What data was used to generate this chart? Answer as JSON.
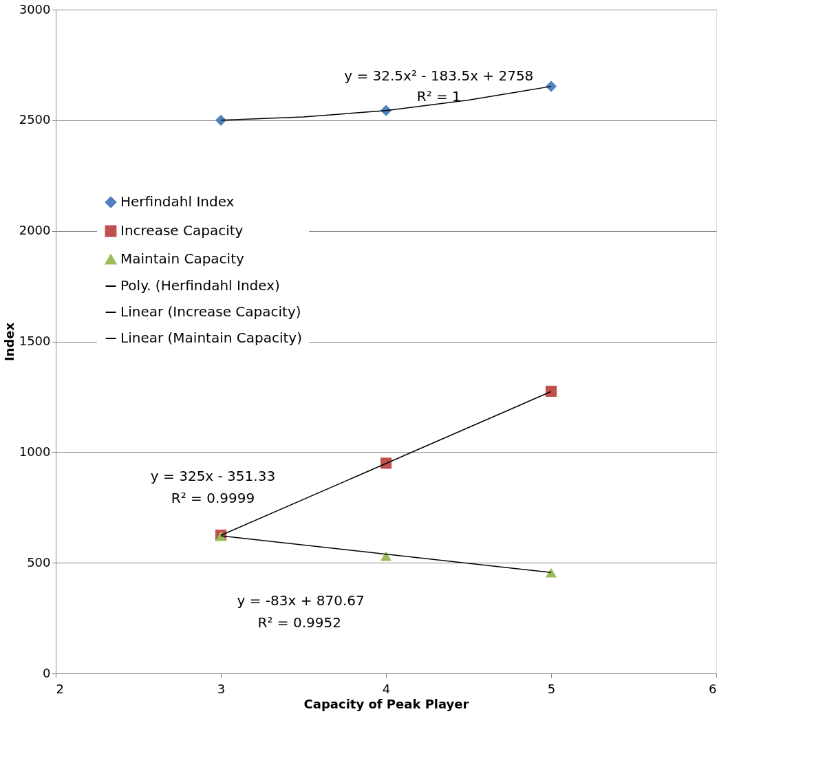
{
  "chart_data": {
    "type": "scatter",
    "xlabel": "Capacity of Peak Player",
    "ylabel": "Index",
    "xlim": [
      2,
      6
    ],
    "xticks": [
      2,
      3,
      4,
      5,
      6
    ],
    "ylim": [
      0,
      3000
    ],
    "yticks": [
      0,
      500,
      1000,
      1500,
      2000,
      2500,
      3000
    ],
    "grid": "y",
    "legend": "left",
    "series": [
      {
        "name": "Herfindahl Index",
        "marker": "diamond",
        "color": "#4f81bd",
        "x": [
          3,
          4,
          5
        ],
        "values": [
          2500,
          2544,
          2653
        ]
      },
      {
        "name": "Increase Capacity",
        "marker": "square",
        "color": "#c0504d",
        "x": [
          3,
          4,
          5
        ],
        "values": [
          625,
          950,
          1275
        ]
      },
      {
        "name": "Maintain Capacity",
        "marker": "triangle",
        "color": "#9bbb59",
        "x": [
          3,
          4,
          5
        ],
        "values": [
          620,
          530,
          455
        ]
      },
      {
        "name": "Poly. (Herfindahl Index)",
        "type": "line",
        "color": "#000000",
        "x": [
          3,
          3.5,
          4,
          4.5,
          5
        ],
        "values": [
          2500,
          2515,
          2544,
          2591,
          2653
        ]
      },
      {
        "name": "Linear (Increase Capacity)",
        "type": "line",
        "color": "#000000",
        "x": [
          3,
          5
        ],
        "values": [
          624,
          1274
        ]
      },
      {
        "name": "Linear (Maintain Capacity)",
        "type": "line",
        "color": "#000000",
        "x": [
          3,
          5
        ],
        "values": [
          622,
          456
        ]
      }
    ],
    "annotations": [
      "y = 32.5x² - 183.5x + 2758",
      "R² = 1",
      "y = 325x - 351.33",
      "R² = 0.9999",
      "y = -83x + 870.67",
      "R² = 0.9952"
    ]
  }
}
